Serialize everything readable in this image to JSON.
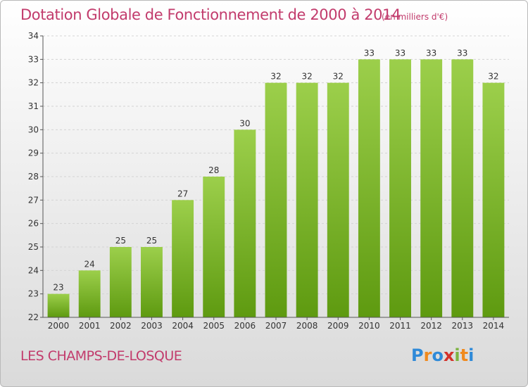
{
  "header": {
    "title": "Dotation Globale de Fonctionnement de 2000 à 2014",
    "subtitle": "(en milliers d'€)"
  },
  "footer": {
    "commune": "LES CHAMPS-DE-LOSQUE",
    "logo_text": "Proxiti"
  },
  "colors": {
    "bar_top": "#9ccf4b",
    "bar_bottom": "#5e9a10",
    "title": "#c23b6c",
    "grid": "#d4d4d4"
  },
  "chart_data": {
    "type": "bar",
    "title": "Dotation Globale de Fonctionnement de 2000 à 2014",
    "subtitle": "(en milliers d'€)",
    "xlabel": "",
    "ylabel": "",
    "categories": [
      "2000",
      "2001",
      "2002",
      "2003",
      "2004",
      "2005",
      "2006",
      "2007",
      "2008",
      "2009",
      "2010",
      "2011",
      "2012",
      "2013",
      "2014"
    ],
    "values": [
      23,
      24,
      25,
      25,
      27,
      28,
      30,
      32,
      32,
      32,
      33,
      33,
      33,
      33,
      32
    ],
    "ylim": [
      22,
      34
    ],
    "yticks": [
      22,
      23,
      24,
      25,
      26,
      27,
      28,
      29,
      30,
      31,
      32,
      33,
      34
    ],
    "grid": "horizontal dashed",
    "legend": "none"
  }
}
